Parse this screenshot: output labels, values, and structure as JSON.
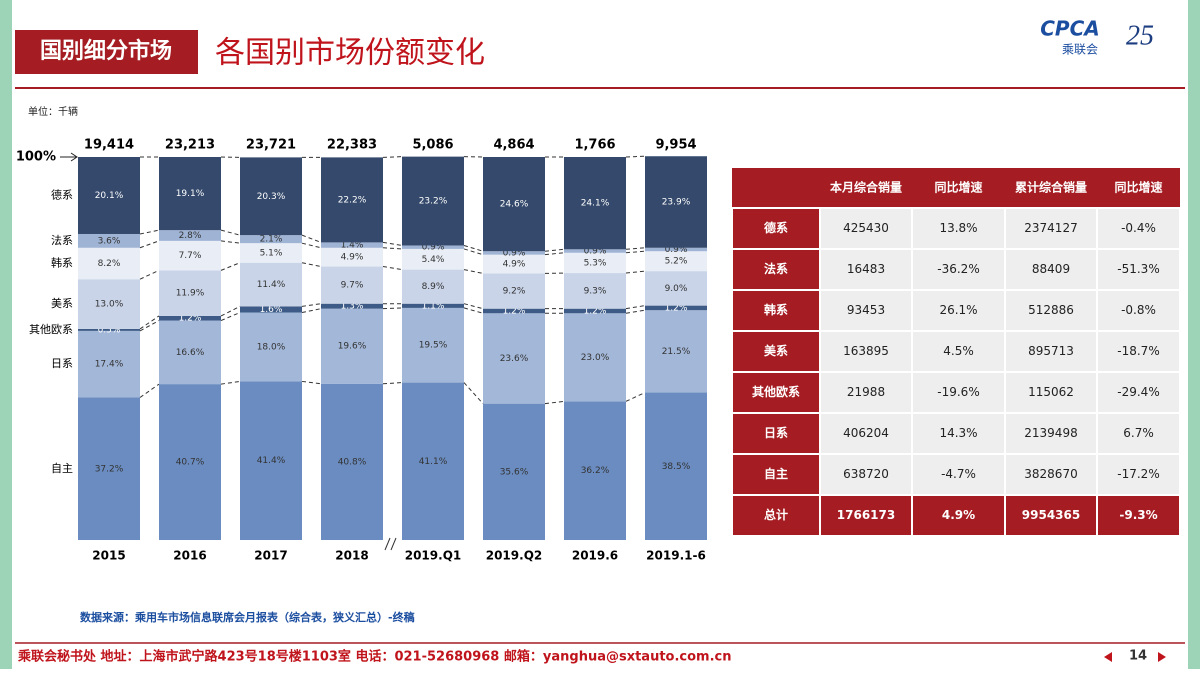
{
  "header": {
    "tag": "国别细分市场",
    "title": "各国别市场份额变化",
    "logo_text": "CPCA",
    "logo_sub": "乘联会",
    "anniversary": "25"
  },
  "unit": "单位：千辆",
  "chart_data": {
    "type": "stacked_bar",
    "categories": [
      "2015",
      "2016",
      "2017",
      "2018",
      "2019.Q1",
      "2019.Q2",
      "2019.6",
      "2019.1-6"
    ],
    "totals": {
      "values": [
        19414,
        23213,
        23721,
        22383,
        5086,
        4864,
        1766,
        9954
      ],
      "value_labels": [
        "19,414",
        "23,213",
        "23,721",
        "22,383",
        "5,086",
        "4,864",
        "1,766",
        "9,954"
      ]
    },
    "ylim": [
      0,
      100
    ],
    "yticks": [
      {
        "value": 100,
        "label": "100%"
      }
    ],
    "series": [
      {
        "name": "自主",
        "color": "#6a8cc0",
        "values": [
          37.2,
          40.7,
          41.4,
          40.8,
          41.1,
          35.6,
          36.2,
          38.5
        ],
        "value_labels": [
          "37.2%",
          "40.7%",
          "41.4%",
          "40.8%",
          "41.1%",
          "35.6%",
          "36.2%",
          "38.5%"
        ]
      },
      {
        "name": "日系",
        "color": "#a3b7d8",
        "values": [
          17.4,
          16.6,
          18.0,
          19.6,
          19.5,
          23.6,
          23.0,
          21.5
        ],
        "value_labels": [
          "17.4%",
          "16.6%",
          "18.0%",
          "19.6%",
          "19.5%",
          "23.6%",
          "23.0%",
          "21.5%"
        ]
      },
      {
        "name": "其他欧系",
        "color": "#3d5b86",
        "values": [
          0.5,
          1.2,
          1.6,
          1.3,
          1.1,
          1.2,
          1.2,
          1.2
        ],
        "value_labels": [
          "0.5%",
          "1.2%",
          "1.6%",
          "1.3%",
          "1.1%",
          "1.2%",
          "1.2%",
          "1.2%"
        ]
      },
      {
        "name": "美系",
        "color": "#c9d4e8",
        "values": [
          13.0,
          11.9,
          11.4,
          9.7,
          8.9,
          9.2,
          9.3,
          9.0
        ],
        "value_labels": [
          "13.0%",
          "11.9%",
          "11.4%",
          "9.7%",
          "8.9%",
          "9.2%",
          "9.3%",
          "9.0%"
        ]
      },
      {
        "name": "韩系",
        "color": "#e9eef6",
        "values": [
          8.2,
          7.7,
          5.1,
          4.9,
          5.4,
          4.9,
          5.3,
          5.2
        ],
        "value_labels": [
          "8.2%",
          "7.7%",
          "5.1%",
          "4.9%",
          "5.4%",
          "4.9%",
          "5.3%",
          "5.2%"
        ]
      },
      {
        "name": "法系",
        "color": "#9fb3d4",
        "values": [
          3.6,
          2.8,
          2.1,
          1.4,
          0.9,
          0.9,
          0.9,
          0.9
        ],
        "value_labels": [
          "3.6%",
          "2.8%",
          "2.1%",
          "1.4%",
          "0.9%",
          "0.9%",
          "0.9%",
          "0.9%"
        ]
      },
      {
        "name": "德系",
        "color": "#34496b",
        "values": [
          20.1,
          19.1,
          20.3,
          22.2,
          23.2,
          24.6,
          24.1,
          23.9
        ],
        "value_labels": [
          "20.1%",
          "19.1%",
          "20.3%",
          "22.2%",
          "23.2%",
          "24.6%",
          "24.1%",
          "23.9%"
        ]
      }
    ]
  },
  "table": {
    "columns": [
      "本月综合销量",
      "同比增速",
      "累计综合销量",
      "同比增速"
    ],
    "rows": [
      [
        "德系",
        "425430",
        "13.8%",
        "2374127",
        "-0.4%"
      ],
      [
        "法系",
        "16483",
        "-36.2%",
        "88409",
        "-51.3%"
      ],
      [
        "韩系",
        "93453",
        "26.1%",
        "512886",
        "-0.8%"
      ],
      [
        "美系",
        "163895",
        "4.5%",
        "895713",
        "-18.7%"
      ],
      [
        "其他欧系",
        "21988",
        "-19.6%",
        "115062",
        "-29.4%"
      ],
      [
        "日系",
        "406204",
        "14.3%",
        "2139498",
        "6.7%"
      ],
      [
        "自主",
        "638720",
        "-4.7%",
        "3828670",
        "-17.2%"
      ],
      [
        "总计",
        "1766173",
        "4.9%",
        "9954365",
        "-9.3%"
      ]
    ]
  },
  "source": "数据来源：乘用车市场信息联席会月报表（综合表，狭义汇总）-终稿",
  "footer": {
    "contact": "乘联会秘书处  地址：上海市武宁路423号18号楼1103室  电话：021-52680968  邮箱：yanghua@sxtauto.com.cn",
    "page": "14"
  }
}
